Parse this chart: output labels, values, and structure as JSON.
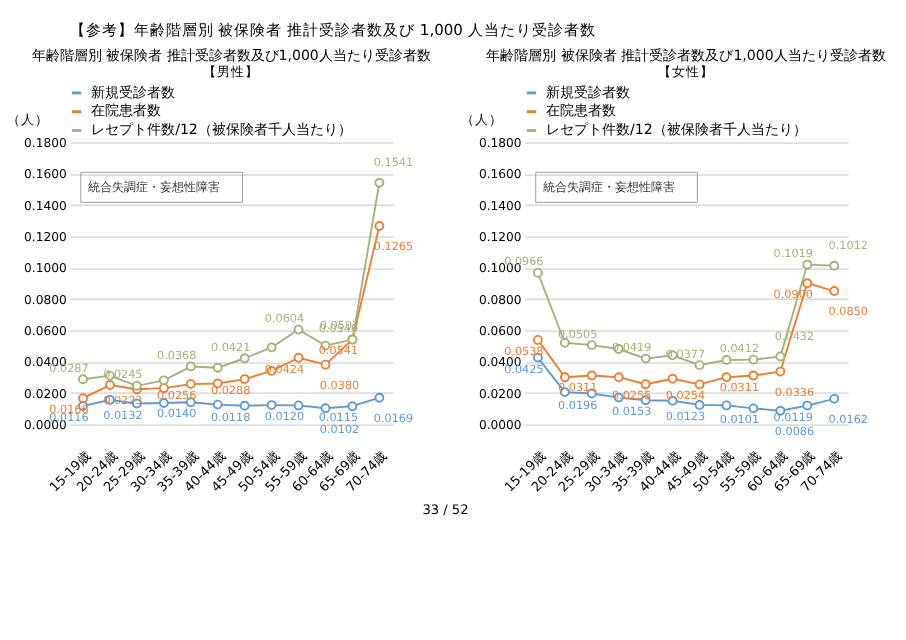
{
  "chart_data": [
    {
      "type": "line",
      "title": "年齢階層別 被保険者 推計受診者数及び1,000人当たり受診者数",
      "subtitle": "【男性】",
      "ylabel": "（人）",
      "annotations": [
        "【参考】年齢階層別 被保険者 推計受診者数及び 1,000 人当たり受診者数",
        "統合失調症・妄想性障害"
      ],
      "categories": [
        "15-19歳",
        "20-24歳",
        "25-29歳",
        "30-34歳",
        "35-39歳",
        "40-44歳",
        "45-49歳",
        "50-54歳",
        "55-59歳",
        "60-64歳",
        "65-69歳",
        "70-74歳"
      ],
      "series": [
        {
          "name": "新規受診者数",
          "color": "#5b9bd5",
          "values": [
            0.0116,
            0.0155,
            0.0132,
            0.0135,
            0.014,
            0.0125,
            0.0118,
            0.0122,
            0.012,
            0.0102,
            0.0115,
            0.0169
          ],
          "value_labels": [
            "0.0116",
            null,
            "0.0132",
            null,
            "0.0140",
            null,
            "0.0118",
            null,
            "0.0120",
            "0.0102",
            "0.0115",
            "0.0169"
          ]
        },
        {
          "name": "在院患者数",
          "color": "#ed7d31",
          "values": [
            0.0166,
            0.025,
            0.0223,
            0.023,
            0.0256,
            0.026,
            0.0288,
            0.034,
            0.0424,
            0.038,
            0.0541,
            0.1265
          ],
          "value_labels": [
            "0.0166",
            null,
            "0.0223",
            null,
            "0.0256",
            null,
            "0.0288",
            null,
            "0.0424",
            "0.0380",
            "0.0541",
            "0.1265"
          ]
        },
        {
          "name": "レセプト件数/12（被保険者千人当たり）",
          "color": "#a5b07a",
          "values": [
            0.0287,
            0.031,
            0.0245,
            0.028,
            0.0368,
            0.036,
            0.0421,
            0.049,
            0.0604,
            0.0502,
            0.054,
            0.1541
          ],
          "value_labels": [
            "0.0287",
            null,
            "0.0245",
            null,
            "0.0368",
            null,
            "0.0421",
            null,
            "0.0604",
            "0.0502",
            "0.0540",
            "0.1541"
          ]
        }
      ],
      "ylim": [
        0,
        0.18
      ],
      "yticks": [
        {
          "value": 0,
          "label": "0.0000"
        },
        {
          "value": 0.02,
          "label": "0.0200"
        },
        {
          "value": 0.04,
          "label": "0.0400"
        },
        {
          "value": 0.06,
          "label": "0.0600"
        },
        {
          "value": 0.08,
          "label": "0.0800"
        },
        {
          "value": 0.1,
          "label": "0.1000"
        },
        {
          "value": 0.12,
          "label": "0.1200"
        },
        {
          "value": 0.14,
          "label": "0.1400"
        },
        {
          "value": 0.16,
          "label": "0.1600"
        },
        {
          "value": 0.18,
          "label": "0.1800"
        }
      ],
      "grid": "y",
      "legend": "top",
      "marker": "circle",
      "line_style": "solid"
    },
    {
      "type": "line",
      "title": "年齢階層別 被保険者 推計受診者数及び1,000人当たり受診者数",
      "subtitle": "【女性】",
      "ylabel": "（人）",
      "annotations": [
        "統合失調症・妄想性障害",
        "33 / 52"
      ],
      "categories": [
        "15-19歳",
        "20-24歳",
        "25-29歳",
        "30-34歳",
        "35-39歳",
        "40-44歳",
        "45-49歳",
        "50-54歳",
        "55-59歳",
        "60-64歳",
        "65-69歳",
        "70-74歳"
      ],
      "series": [
        {
          "name": "新規受診者数",
          "color": "#5b9bd5",
          "values": [
            0.0425,
            0.0205,
            0.0196,
            0.017,
            0.0153,
            0.015,
            0.0123,
            0.012,
            0.0101,
            0.0086,
            0.0119,
            0.0162
          ],
          "value_labels": [
            "0.0425",
            null,
            "0.0196",
            null,
            "0.0153",
            null,
            "0.0123",
            null,
            "0.0101",
            "0.0086",
            "0.0119",
            "0.0162"
          ]
        },
        {
          "name": "在院患者数",
          "color": "#ed7d31",
          "values": [
            0.0538,
            0.03,
            0.0311,
            0.03,
            0.0255,
            0.029,
            0.0254,
            0.03,
            0.0311,
            0.0336,
            0.09,
            0.085
          ],
          "value_labels": [
            "0.0538",
            null,
            "0.0311",
            null,
            "0.0255",
            null,
            "0.0254",
            null,
            "0.0311",
            "0.0336",
            "0.0900",
            "0.0850"
          ]
        },
        {
          "name": "レセプト件数/12（被保険者千人当たり）",
          "color": "#a5b07a",
          "values": [
            0.0966,
            0.052,
            0.0505,
            0.048,
            0.0419,
            0.044,
            0.0377,
            0.041,
            0.0412,
            0.0432,
            0.1019,
            0.1012
          ],
          "value_labels": [
            "0.0966",
            null,
            "0.0505",
            null,
            "0.0419",
            null,
            "0.0377",
            null,
            "0.0412",
            "0.0432",
            "0.1019",
            "0.1012"
          ]
        }
      ],
      "ylim": [
        0,
        0.18
      ],
      "yticks": [
        {
          "value": 0,
          "label": "0.0000"
        },
        {
          "value": 0.02,
          "label": "0.0200"
        },
        {
          "value": 0.04,
          "label": "0.0400"
        },
        {
          "value": 0.06,
          "label": "0.0600"
        },
        {
          "value": 0.08,
          "label": "0.0800"
        },
        {
          "value": 0.1,
          "label": "0.1000"
        },
        {
          "value": 0.12,
          "label": "0.1200"
        },
        {
          "value": 0.14,
          "label": "0.1400"
        },
        {
          "value": 0.16,
          "label": "0.1600"
        },
        {
          "value": 0.18,
          "label": "0.1800"
        }
      ],
      "grid": "y",
      "legend": "top",
      "marker": "circle",
      "line_style": "solid"
    }
  ]
}
